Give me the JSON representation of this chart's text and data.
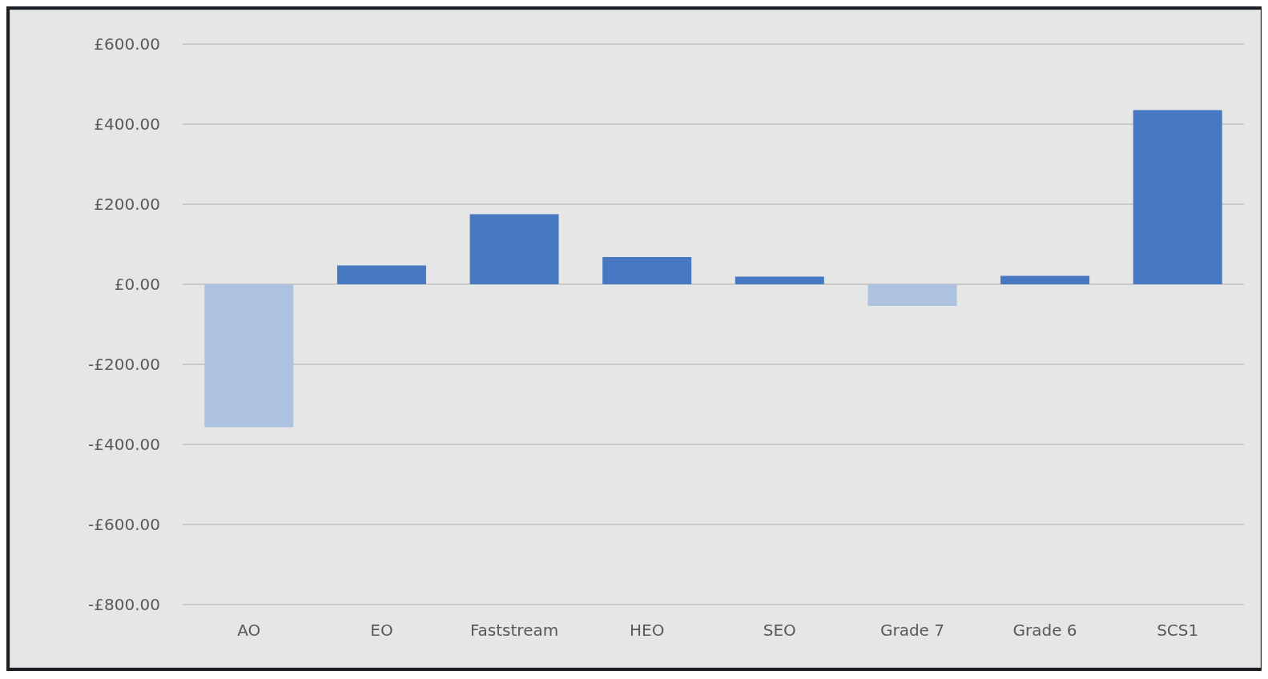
{
  "chart_data": {
    "type": "bar",
    "categories": [
      "AO",
      "EO",
      "Faststream",
      "HEO",
      "SEO",
      "Grade 7",
      "Grade 6",
      "SCS1"
    ],
    "values": [
      -357,
      47,
      175,
      68,
      19,
      -54,
      21,
      435
    ],
    "colors": [
      "#adc2de",
      "#4878c1",
      "#4878c1",
      "#4878c1",
      "#4878c1",
      "#adc2de",
      "#4878c1",
      "#4878c1"
    ],
    "ylim": [
      -800,
      600
    ],
    "yticks": [
      {
        "value": -800,
        "label": "-£800.00"
      },
      {
        "value": -600,
        "label": "-£600.00"
      },
      {
        "value": -400,
        "label": "-£400.00"
      },
      {
        "value": -200,
        "label": "-£200.00"
      },
      {
        "value": 0,
        "label": "£0.00"
      },
      {
        "value": 200,
        "label": "£200.00"
      },
      {
        "value": 400,
        "label": "£400.00"
      },
      {
        "value": 600,
        "label": "£600.00"
      }
    ],
    "grid": "y"
  }
}
